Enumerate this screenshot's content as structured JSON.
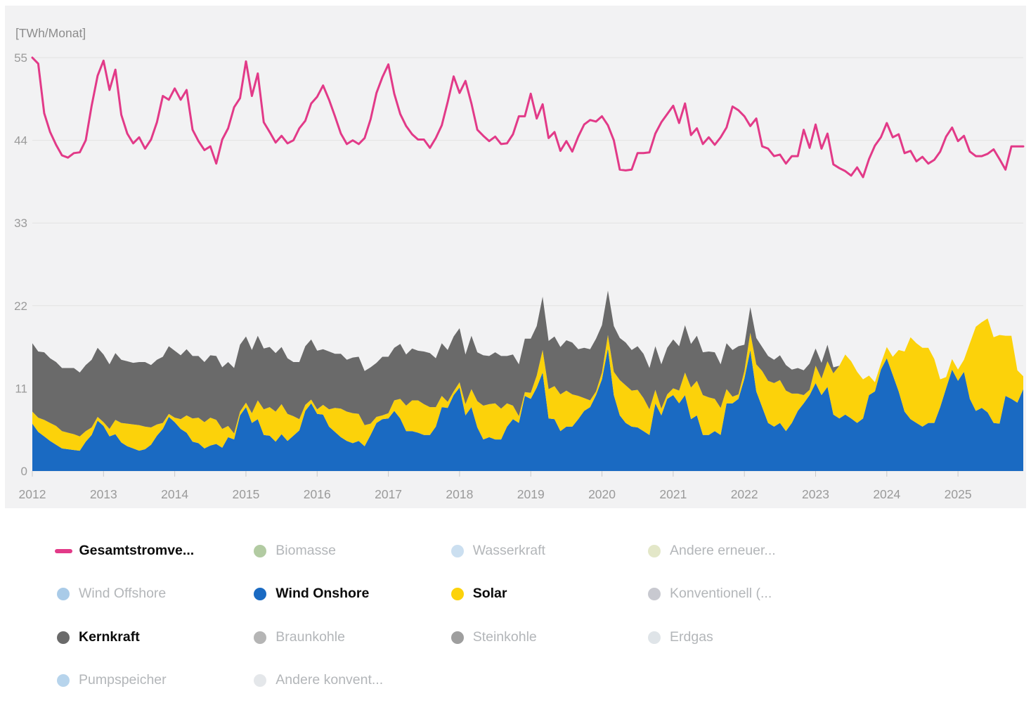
{
  "chart": {
    "unit_label": "[TWh/Monat]"
  },
  "colors": {
    "panel_bg": "#f2f2f3",
    "grid": "#e2e2e2",
    "axis_tick": "#c9c9c9",
    "tick_text": "#9a9a9a",
    "unit_text": "#8d8d8d"
  },
  "chart_data": {
    "type": "area",
    "title": "",
    "ylabel": "[TWh/Monat]",
    "xlabel": "",
    "x_range": {
      "start_year": 2012,
      "start_month": 1,
      "end_year": 2025,
      "end_month": 12
    },
    "y_axis": {
      "ticks": [
        55,
        44,
        33,
        22,
        11,
        0
      ],
      "max": 55,
      "min": 0
    },
    "x_axis": {
      "year_labels": [
        "2012",
        "2013",
        "2014",
        "2015",
        "2016",
        "2017",
        "2018",
        "2019",
        "2020",
        "2021",
        "2022",
        "2023",
        "2024",
        "2025"
      ]
    },
    "line_series": {
      "name": "Gesamtstromverbrauch",
      "color": "#e23a88",
      "values_by_year": [
        [
          55.0,
          54.2,
          47.6,
          45.1,
          43.4,
          42.0,
          41.7,
          42.3,
          42.4,
          44.0,
          48.6,
          52.6
        ],
        [
          54.6,
          50.7,
          53.4,
          47.4,
          44.9,
          43.6,
          44.4,
          42.9,
          44.1,
          46.4,
          49.9,
          49.4
        ],
        [
          50.9,
          49.4,
          50.7,
          45.4,
          43.9,
          42.7,
          43.2,
          40.9,
          44.1,
          45.6,
          48.4,
          49.6
        ],
        [
          54.5,
          49.9,
          52.9,
          46.4,
          45.1,
          43.7,
          44.6,
          43.6,
          44.0,
          45.6,
          46.6,
          48.9
        ],
        [
          49.8,
          51.3,
          49.4,
          47.2,
          44.9,
          43.5,
          44.0,
          43.5,
          44.3,
          46.8,
          50.3,
          52.4
        ],
        [
          54.1,
          50.2,
          47.5,
          45.9,
          44.8,
          44.1,
          44.1,
          43.0,
          44.3,
          46.0,
          49.1,
          52.5
        ],
        [
          50.3,
          51.9,
          48.9,
          45.4,
          44.6,
          43.9,
          44.5,
          43.5,
          43.6,
          44.8,
          47.2,
          47.2
        ],
        [
          50.2,
          46.9,
          48.8,
          44.3,
          45.1,
          42.6,
          43.9,
          42.5,
          44.5,
          46.1,
          46.7,
          46.5
        ],
        [
          47.2,
          46.0,
          44.0,
          40.1,
          40.0,
          40.1,
          42.3,
          42.3,
          42.4,
          44.9,
          46.4,
          47.5
        ],
        [
          48.6,
          46.3,
          48.9,
          44.7,
          45.6,
          43.5,
          44.4,
          43.4,
          44.4,
          45.7,
          48.5,
          48.0
        ],
        [
          47.2,
          45.9,
          46.9,
          43.2,
          42.9,
          41.9,
          42.1,
          40.9,
          41.9,
          41.9,
          45.4,
          43.0
        ],
        [
          46.1,
          42.9,
          44.9,
          40.8,
          40.3,
          39.9,
          39.3,
          40.4,
          39.1,
          41.5,
          43.3,
          44.4
        ],
        [
          46.3,
          44.4,
          44.8,
          42.3,
          42.6,
          41.2,
          41.8,
          40.9,
          41.4,
          42.5,
          44.5,
          45.7
        ],
        [
          43.9,
          44.6,
          42.5,
          41.9,
          41.9,
          42.2,
          42.8,
          41.5,
          40.1,
          43.2,
          43.2,
          43.2
        ]
      ]
    },
    "stacked_series": [
      {
        "name": "Wind Onshore",
        "color": "#1a6ac2",
        "values_by_year": [
          [
            6.3,
            5.2,
            4.6,
            4.0,
            3.5,
            3.0,
            2.9,
            2.8,
            2.7,
            3.9,
            4.8,
            6.7
          ],
          [
            6.0,
            4.6,
            4.9,
            3.8,
            3.3,
            3.0,
            2.7,
            2.9,
            3.5,
            4.7,
            5.6,
            7.2
          ],
          [
            6.5,
            5.6,
            5.1,
            3.9,
            3.7,
            3.0,
            3.4,
            3.6,
            3.1,
            4.5,
            4.2,
            7.4
          ],
          [
            8.5,
            6.4,
            6.9,
            4.8,
            4.7,
            3.9,
            4.9,
            4.0,
            4.7,
            5.4,
            8.0,
            9.0
          ],
          [
            7.6,
            7.5,
            5.9,
            5.2,
            4.5,
            4.0,
            3.7,
            4.0,
            3.3,
            4.8,
            6.4,
            6.9
          ],
          [
            7.0,
            8.0,
            7.0,
            5.3,
            5.3,
            5.1,
            4.8,
            4.8,
            5.9,
            8.5,
            8.4,
            10.1
          ],
          [
            11.1,
            7.4,
            8.5,
            5.8,
            4.2,
            4.5,
            4.2,
            4.2,
            5.9,
            6.9,
            6.4,
            10.0
          ],
          [
            9.6,
            11.1,
            13.1,
            7.0,
            6.9,
            5.3,
            5.9,
            5.9,
            6.9,
            8.0,
            8.5,
            10.1
          ],
          [
            12.2,
            16.3,
            10.1,
            7.4,
            6.4,
            5.9,
            5.8,
            5.3,
            4.8,
            9.0,
            7.4,
            9.6
          ],
          [
            10.1,
            9.0,
            10.1,
            6.9,
            7.4,
            4.8,
            4.8,
            5.3,
            4.8,
            9.0,
            9.0,
            9.6
          ],
          [
            12.3,
            16.1,
            10.6,
            8.5,
            6.4,
            5.9,
            6.4,
            5.3,
            6.4,
            8.0,
            9.0,
            10.1
          ],
          [
            11.7,
            10.1,
            11.2,
            7.5,
            7.0,
            7.5,
            7.0,
            6.4,
            7.0,
            10.1,
            10.6,
            13.5
          ],
          [
            15.0,
            12.8,
            10.6,
            7.9,
            6.9,
            6.4,
            5.9,
            6.4,
            6.4,
            8.5,
            11.0,
            13.5
          ],
          [
            12.0,
            13.2,
            9.6,
            8.0,
            8.4,
            7.8,
            6.4,
            6.3,
            10.0,
            9.6,
            9.1,
            10.9
          ]
        ]
      },
      {
        "name": "Solar",
        "color": "#fcd20a",
        "values_by_year": [
          [
            1.6,
            1.9,
            2.2,
            2.4,
            2.5,
            2.3,
            2.2,
            2.1,
            1.9,
            1.4,
            1.0,
            0.5
          ],
          [
            0.5,
            1.0,
            1.9,
            2.6,
            3.0,
            3.2,
            3.4,
            3.0,
            2.3,
            1.5,
            0.8,
            0.4
          ],
          [
            0.6,
            1.3,
            2.3,
            3.1,
            3.4,
            3.5,
            3.7,
            3.2,
            2.5,
            1.5,
            0.8,
            0.5
          ],
          [
            0.6,
            1.3,
            2.5,
            3.4,
            3.8,
            4.0,
            4.0,
            3.6,
            2.6,
            1.5,
            0.8,
            0.5
          ],
          [
            0.6,
            1.3,
            2.3,
            3.2,
            3.8,
            3.9,
            4.0,
            3.6,
            2.8,
            1.5,
            0.8,
            0.5
          ],
          [
            0.7,
            1.4,
            2.6,
            3.4,
            4.1,
            4.3,
            4.1,
            3.7,
            2.6,
            1.5,
            0.8,
            0.5
          ],
          [
            0.7,
            1.5,
            2.4,
            3.5,
            4.5,
            4.4,
            4.8,
            4.1,
            3.1,
            1.8,
            0.9,
            0.5
          ],
          [
            0.8,
            1.6,
            3.0,
            3.9,
            4.4,
            4.9,
            4.8,
            4.3,
            3.1,
            1.7,
            0.9,
            0.5
          ],
          [
            0.9,
            1.8,
            3.1,
            4.7,
            5.0,
            4.8,
            5.0,
            4.4,
            3.4,
            1.8,
            0.9,
            0.6
          ],
          [
            0.9,
            1.7,
            3.0,
            4.2,
            4.6,
            5.3,
            5.0,
            4.3,
            3.6,
            1.9,
            0.9,
            0.6
          ],
          [
            1.0,
            2.3,
            3.6,
            4.8,
            5.6,
            5.8,
            5.7,
            5.4,
            3.9,
            2.3,
            1.1,
            0.7
          ],
          [
            2.3,
            2.2,
            3.4,
            5.5,
            7.0,
            8.0,
            7.6,
            6.8,
            5.2,
            2.6,
            1.2,
            0.8
          ],
          [
            1.5,
            2.4,
            5.5,
            8.0,
            10.9,
            10.6,
            10.5,
            10.0,
            8.5,
            3.7,
            1.5,
            1.4
          ],
          [
            1.5,
            1.6,
            7.4,
            11.2,
            11.4,
            12.5,
            11.4,
            11.8,
            8.0,
            8.4,
            4.3,
            1.7
          ]
        ]
      },
      {
        "name": "Kernkraft",
        "color": "#6a6a6a",
        "values_by_year": [
          [
            9.1,
            8.8,
            9.0,
            8.6,
            8.5,
            8.4,
            8.6,
            8.8,
            8.5,
            8.8,
            9.0,
            9.2
          ],
          [
            9.0,
            8.6,
            8.9,
            8.4,
            8.3,
            8.2,
            8.4,
            8.6,
            8.3,
            8.6,
            8.8,
            9.0
          ],
          [
            8.9,
            8.5,
            8.8,
            8.3,
            8.2,
            8.0,
            8.3,
            8.5,
            8.2,
            8.5,
            8.7,
            8.9
          ],
          [
            8.8,
            8.4,
            8.6,
            8.1,
            8.0,
            7.8,
            7.6,
            7.4,
            7.2,
            7.6,
            7.8,
            8.0
          ],
          [
            7.8,
            7.4,
            7.7,
            7.2,
            7.3,
            6.9,
            7.4,
            7.6,
            7.2,
            7.5,
            7.2,
            7.8
          ],
          [
            7.5,
            7.0,
            7.3,
            6.8,
            6.9,
            6.6,
            7.0,
            7.2,
            6.5,
            7.0,
            6.9,
            7.3
          ],
          [
            7.2,
            6.6,
            7.1,
            6.5,
            6.7,
            6.4,
            6.8,
            7.0,
            6.3,
            6.8,
            6.9,
            7.1
          ],
          [
            7.2,
            6.6,
            7.1,
            6.4,
            6.6,
            6.3,
            6.7,
            6.9,
            6.2,
            6.7,
            6.8,
            7.0
          ],
          [
            6.3,
            5.9,
            6.1,
            5.6,
            5.7,
            5.4,
            5.8,
            5.9,
            5.5,
            5.8,
            5.9,
            6.2
          ],
          [
            6.5,
            5.9,
            6.3,
            5.8,
            6.0,
            5.7,
            6.1,
            6.2,
            5.8,
            6.1,
            6.2,
            6.4
          ],
          [
            3.5,
            3.4,
            3.5,
            3.2,
            3.3,
            3.1,
            3.3,
            3.4,
            3.2,
            3.4,
            3.3,
            3.5
          ],
          [
            2.3,
            2.1,
            2.2,
            0.8,
            0,
            0,
            0,
            0,
            0,
            0,
            0,
            0
          ],
          [
            0,
            0,
            0,
            0,
            0,
            0,
            0,
            0,
            0,
            0,
            0,
            0
          ],
          [
            0,
            0,
            0,
            0,
            0,
            0,
            0,
            0,
            0,
            0,
            0,
            0
          ]
        ]
      }
    ]
  },
  "legend": {
    "items": [
      {
        "label": "Gesamtstromve...",
        "color": "#e23a88",
        "marker": "line",
        "active": true
      },
      {
        "label": "Biomasse",
        "color": "#b2cba2",
        "marker": "circle",
        "active": false
      },
      {
        "label": "Wasserkraft",
        "color": "#cbdff0",
        "marker": "circle",
        "active": false
      },
      {
        "label": "Andere erneuer...",
        "color": "#e3e7c8",
        "marker": "circle",
        "active": false
      },
      {
        "label": "Wind Offshore",
        "color": "#a9cbe8",
        "marker": "circle",
        "active": false
      },
      {
        "label": "Wind Onshore",
        "color": "#1a6ac2",
        "marker": "circle",
        "active": true
      },
      {
        "label": "Solar",
        "color": "#fcd20a",
        "marker": "circle",
        "active": true
      },
      {
        "label": "Konventionell (...",
        "color": "#c8c9d0",
        "marker": "circle",
        "active": false
      },
      {
        "label": "Kernkraft",
        "color": "#6a6a6a",
        "marker": "circle",
        "active": true
      },
      {
        "label": "Braunkohle",
        "color": "#b5b5b5",
        "marker": "circle",
        "active": false
      },
      {
        "label": "Steinkohle",
        "color": "#9e9e9e",
        "marker": "circle",
        "active": false
      },
      {
        "label": "Erdgas",
        "color": "#dfe4e8",
        "marker": "circle",
        "active": false
      },
      {
        "label": "Pumpspeicher",
        "color": "#b7d4ec",
        "marker": "circle",
        "active": false
      },
      {
        "label": "Andere konvent...",
        "color": "#e4e7ea",
        "marker": "circle",
        "active": false
      }
    ]
  }
}
